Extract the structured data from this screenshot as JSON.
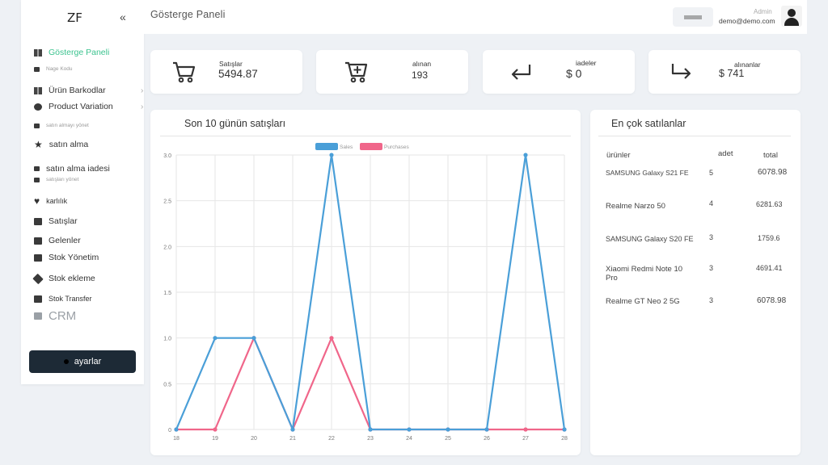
{
  "sidebar": {
    "logo": "ZF",
    "collapse_glyph": "«",
    "items": [
      {
        "label": "Gösterge Paneli"
      },
      {
        "label": "Nage Kodu"
      },
      {
        "label": "Ürün Barkodlar"
      },
      {
        "label": "Product Variation"
      },
      {
        "label": "satın almayı yönet"
      },
      {
        "label": "satın alma"
      },
      {
        "label": "satın alma iadesi"
      },
      {
        "label": "satışları yönet"
      },
      {
        "label": "karlılık"
      },
      {
        "label": "Satışlar"
      },
      {
        "label": "Gelenler"
      },
      {
        "label": "Stok Yönetim"
      },
      {
        "label": "Stok ekleme"
      },
      {
        "label": "Stok Transfer"
      },
      {
        "label": "CRM"
      }
    ],
    "settings_label": "ayarlar"
  },
  "header": {
    "title": "Gösterge Paneli",
    "user_role": "Admin",
    "user_email": "demo@demo.com"
  },
  "stats": [
    {
      "label": "Satışlar",
      "value": "5494.87",
      "icon": "cart-icon"
    },
    {
      "label": "alınan",
      "value": "193",
      "icon": "cart-plus-icon"
    },
    {
      "label": "iadeler",
      "value": "$ 0",
      "icon": "return-arrow-icon"
    },
    {
      "label": "alınanlar",
      "value": "$ 741",
      "icon": "forward-arrow-icon"
    }
  ],
  "chart": {
    "title": "Son 10 günün satışları",
    "colors": {
      "sales": "#4a9fd8",
      "purchases": "#f0668a"
    }
  },
  "chart_data": {
    "type": "line",
    "x": [
      "18",
      "19",
      "20",
      "21",
      "22",
      "23",
      "24",
      "25",
      "26",
      "27",
      "28"
    ],
    "series": [
      {
        "name": "Sales",
        "values": [
          0,
          1,
          1,
          0,
          3,
          0,
          0,
          0,
          0,
          3,
          0
        ]
      },
      {
        "name": "Purchases",
        "values": [
          0,
          0,
          1,
          0,
          1,
          0,
          0,
          0,
          0,
          0,
          0
        ]
      }
    ],
    "yticks": [
      "0",
      "0.5",
      "1.0",
      "1.5",
      "2.0",
      "2.5",
      "3.0"
    ],
    "ylim": [
      0,
      3
    ],
    "grid": true,
    "legend_position": "top-center"
  },
  "top_sellers": {
    "title": "En çok satılanlar",
    "columns": [
      "ürünler",
      "adet",
      "total"
    ],
    "rows": [
      {
        "name": "SAMSUNG Galaxy S21 FE",
        "qty": "5",
        "total": "6078.98"
      },
      {
        "name": "Realme Narzo 50",
        "qty": "4",
        "total": "6281.63"
      },
      {
        "name": "SAMSUNG Galaxy S20 FE",
        "qty": "3",
        "total": "1759.6"
      },
      {
        "name": "Xiaomi Redmi Note 10 Pro",
        "qty": "3",
        "total": "4691.41"
      },
      {
        "name": "Realme GT Neo 2 5G",
        "qty": "3",
        "total": "6078.98"
      }
    ]
  }
}
